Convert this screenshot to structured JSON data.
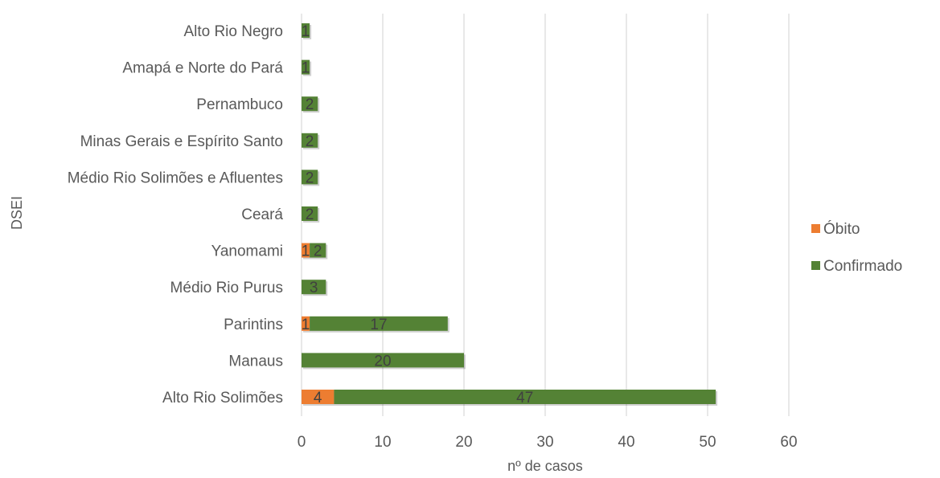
{
  "chart_data": {
    "type": "bar",
    "orientation": "horizontal",
    "stacked": true,
    "categories": [
      "Alto Rio Negro",
      "Amapá e Norte do Pará",
      "Pernambuco",
      "Minas Gerais e Espírito Santo",
      "Médio Rio Solimões e Afluentes",
      "Ceará",
      "Yanomami",
      "Médio Rio Purus",
      "Parintins",
      "Manaus",
      "Alto Rio Solimões"
    ],
    "series": [
      {
        "name": "Óbito",
        "color": "#ED7D31",
        "values": [
          0,
          0,
          0,
          0,
          0,
          0,
          1,
          0,
          1,
          0,
          4
        ]
      },
      {
        "name": "Confirmado",
        "color": "#548235",
        "values": [
          1,
          1,
          2,
          2,
          2,
          2,
          2,
          3,
          17,
          20,
          47
        ]
      }
    ],
    "xlabel": "nº de casos",
    "ylabel": "DSEI",
    "xlim": [
      0,
      60
    ],
    "xticks": [
      0,
      10,
      20,
      30,
      40,
      50,
      60
    ],
    "grid": true,
    "legend": "right"
  }
}
